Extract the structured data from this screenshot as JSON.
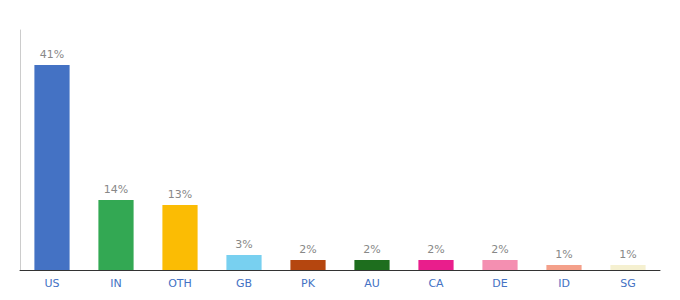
{
  "chart_data": {
    "type": "bar",
    "categories": [
      "US",
      "IN",
      "OTH",
      "GB",
      "PK",
      "AU",
      "CA",
      "DE",
      "ID",
      "SG"
    ],
    "values": [
      41,
      14,
      13,
      3,
      2,
      2,
      2,
      2,
      1,
      1
    ],
    "value_labels": [
      "41%",
      "14%",
      "13%",
      "3%",
      "2%",
      "2%",
      "2%",
      "2%",
      "1%",
      "1%"
    ],
    "colors": [
      "#4472C4",
      "#33A853",
      "#FBBC04",
      "#78D0F0",
      "#B5460F",
      "#1E6E1E",
      "#E91E8C",
      "#F48FB1",
      "#F4A08A",
      "#F5F0D0"
    ],
    "ylim": [
      0,
      48
    ],
    "grid": false,
    "data_labels": true,
    "tick_labels": "x"
  }
}
